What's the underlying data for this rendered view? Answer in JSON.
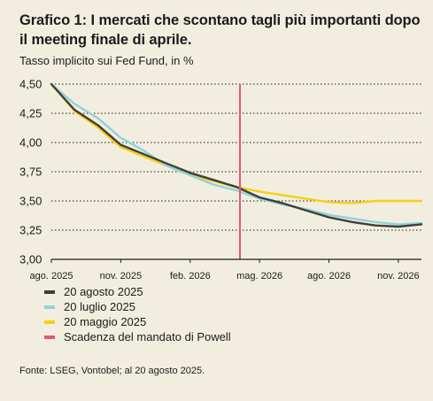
{
  "title": "Grafico 1: I mercati che scontano tagli più importanti dopo il meeting finale di aprile.",
  "subtitle": "Tasso implicito sui Fed Fund, in %",
  "source": "Fonte: LSEG, Vontobel; al 20 agosto 2025.",
  "colors": {
    "background": "#f2eedf",
    "aug2025": "#3f3f37",
    "jul2025": "#8fd3dc",
    "may2025": "#f5cf14",
    "powell": "#e0577d"
  },
  "chart_data": {
    "type": "line",
    "ylim": [
      3.0,
      4.5
    ],
    "yticks": [
      "4,50",
      "4,25",
      "4,00",
      "3,75",
      "3,50",
      "3,25",
      "3,00"
    ],
    "ytick_values": [
      4.5,
      4.25,
      4.0,
      3.75,
      3.5,
      3.25,
      3.0
    ],
    "xlim": [
      "2025-08",
      "2026-12"
    ],
    "xticks": [
      {
        "label": "ago. 2025",
        "month": "2025-08"
      },
      {
        "label": "nov. 2025",
        "month": "2025-11"
      },
      {
        "label": "feb. 2026",
        "month": "2026-02"
      },
      {
        "label": "mag. 2026",
        "month": "2026-05"
      },
      {
        "label": "ago. 2026",
        "month": "2026-08"
      },
      {
        "label": "nov. 2026",
        "month": "2026-11"
      }
    ],
    "grid": true,
    "legend_position": "bottom",
    "x": [
      "2025-08",
      "2025-09",
      "2025-10",
      "2025-11",
      "2025-12",
      "2026-01",
      "2026-02",
      "2026-03",
      "2026-04",
      "2026-05",
      "2026-06",
      "2026-07",
      "2026-08",
      "2026-09",
      "2026-10",
      "2026-11",
      "2026-12"
    ],
    "series": [
      {
        "name": "20 agosto 2025",
        "color_key": "aug2025",
        "values": [
          4.5,
          4.28,
          4.15,
          3.98,
          3.9,
          3.82,
          3.74,
          3.68,
          3.62,
          3.53,
          3.48,
          3.42,
          3.36,
          3.32,
          3.29,
          3.28,
          3.3
        ]
      },
      {
        "name": "20 luglio 2025",
        "color_key": "jul2025",
        "values": [
          4.5,
          4.33,
          4.21,
          4.04,
          3.93,
          3.8,
          3.72,
          3.64,
          3.59,
          3.52,
          3.47,
          3.43,
          3.38,
          3.35,
          3.32,
          3.3,
          3.31
        ]
      },
      {
        "name": "20 maggio 2025",
        "color_key": "may2025",
        "values": [
          4.5,
          4.27,
          4.13,
          3.96,
          3.88,
          3.8,
          3.73,
          3.67,
          3.62,
          3.58,
          3.55,
          3.52,
          3.49,
          3.48,
          3.5,
          3.5,
          3.5
        ]
      }
    ],
    "vline": {
      "name": "Scadenza del mandato di Powell",
      "color_key": "powell",
      "month": "2026-04"
    }
  }
}
